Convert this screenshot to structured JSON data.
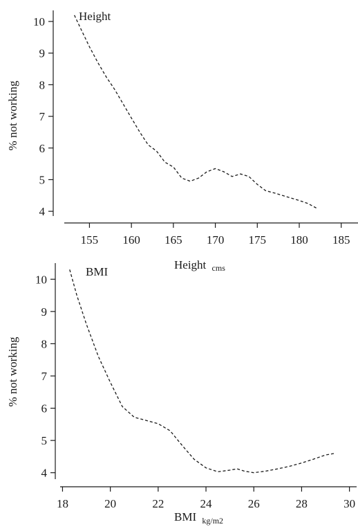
{
  "chart_data": [
    {
      "type": "line",
      "title": "Height",
      "xlabel": "Height",
      "xlabel_sub": "cms",
      "ylabel": "% not working",
      "xlim": [
        152,
        187
      ],
      "ylim": [
        3.85,
        10.35
      ],
      "xticks": [
        155,
        160,
        165,
        170,
        175,
        180,
        185
      ],
      "yticks": [
        4,
        5,
        6,
        7,
        8,
        9,
        10
      ],
      "grid": false,
      "series": [
        {
          "x": [
            153.2,
            154,
            155,
            156,
            157,
            158,
            159,
            160,
            161,
            162,
            163,
            164,
            165,
            166,
            167,
            168,
            169,
            170,
            171,
            172,
            173,
            174,
            175,
            176,
            177,
            178,
            179,
            180,
            181,
            182.2
          ],
          "y": [
            10.2,
            9.75,
            9.2,
            8.7,
            8.25,
            7.85,
            7.4,
            6.95,
            6.5,
            6.1,
            5.9,
            5.55,
            5.4,
            5.05,
            4.95,
            5.05,
            5.25,
            5.35,
            5.25,
            5.1,
            5.18,
            5.1,
            4.85,
            4.65,
            4.58,
            4.5,
            4.42,
            4.34,
            4.25,
            4.08
          ]
        }
      ]
    },
    {
      "type": "line",
      "title": "BMI",
      "xlabel": "BMI",
      "xlabel_sub": "kg/m2",
      "ylabel": "% not working",
      "xlim": [
        17.9,
        30.3
      ],
      "ylim": [
        3.8,
        10.5
      ],
      "xticks": [
        18,
        20,
        22,
        24,
        26,
        28,
        30
      ],
      "yticks": [
        4,
        5,
        6,
        7,
        8,
        9,
        10
      ],
      "grid": false,
      "series": [
        {
          "x": [
            18.3,
            18.6,
            19,
            19.5,
            20,
            20.5,
            21,
            21.5,
            22,
            22.5,
            23,
            23.5,
            24,
            24.5,
            25,
            25.3,
            25.6,
            26,
            26.5,
            27,
            27.5,
            28,
            28.5,
            29,
            29.4
          ],
          "y": [
            10.3,
            9.5,
            8.6,
            7.6,
            6.8,
            6.05,
            5.72,
            5.62,
            5.52,
            5.3,
            4.85,
            4.42,
            4.15,
            4.03,
            4.08,
            4.12,
            4.05,
            4.0,
            4.05,
            4.12,
            4.2,
            4.3,
            4.42,
            4.55,
            4.6
          ]
        }
      ]
    }
  ]
}
